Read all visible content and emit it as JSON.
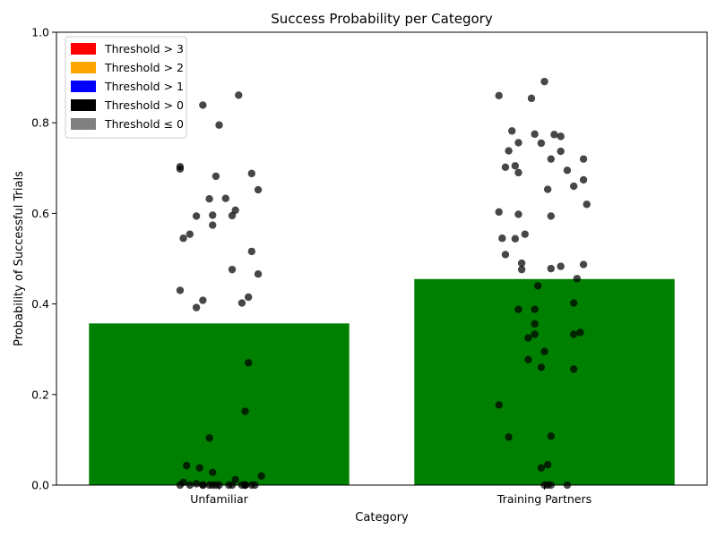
{
  "chart_data": {
    "type": "bar",
    "title": "Success Probability per Category",
    "xlabel": "Category",
    "ylabel": "Probability of Successful Trials",
    "ylim": [
      0,
      1
    ],
    "yticks": [
      "0.0",
      "0.2",
      "0.4",
      "0.6",
      "0.8",
      "1.0"
    ],
    "categories": [
      "Unfamiliar",
      "Training Partners"
    ],
    "values": [
      0.357,
      0.455
    ],
    "bar_color": "#008000",
    "point_color": "#000000",
    "legend_position": "upper-left",
    "legend": [
      {
        "label": "Threshold > 3",
        "color": "#ff0000"
      },
      {
        "label": "Threshold > 2",
        "color": "#ffa500"
      },
      {
        "label": "Threshold > 1",
        "color": "#0000ff"
      },
      {
        "label": "Threshold > 0",
        "color": "#000000"
      },
      {
        "label": "Threshold ≤ 0",
        "color": "#808080"
      }
    ],
    "points": [
      {
        "category": "Unfamiliar",
        "jitter": [
          0.06,
          -0.05,
          0.0,
          -0.12,
          0.1,
          -0.12,
          -0.01,
          0.12,
          -0.03,
          0.02,
          0.05,
          -0.02,
          -0.07,
          0.04,
          -0.02,
          -0.09,
          -0.11,
          0.1,
          0.04,
          0.12,
          -0.12,
          0.09,
          -0.05,
          0.07,
          -0.07,
          0.09,
          0.08,
          -0.03,
          -0.1,
          -0.06,
          -0.02,
          0.13,
          0.05,
          -0.11,
          -0.07,
          -0.01,
          0.1,
          0.07,
          -0.03,
          -0.12,
          0.08,
          -0.05,
          0.0,
          0.08,
          0.04,
          -0.05,
          -0.02,
          -0.09,
          0.08,
          0.03,
          0.11
        ],
        "values": [
          0.861,
          0.839,
          0.795,
          0.703,
          0.688,
          0.698,
          0.682,
          0.652,
          0.632,
          0.633,
          0.607,
          0.596,
          0.594,
          0.595,
          0.574,
          0.554,
          0.545,
          0.516,
          0.476,
          0.466,
          0.43,
          0.415,
          0.408,
          0.402,
          0.392,
          0.27,
          0.163,
          0.104,
          0.043,
          0.038,
          0.028,
          0.02,
          0.012,
          0.006,
          0.003,
          0.0,
          0.0,
          0.0,
          0.0,
          0.0,
          0.0,
          0.0,
          0.0,
          0.0,
          0.0,
          0.0,
          0.0,
          0.0,
          0.0,
          0.0,
          0.0
        ]
      },
      {
        "category": "Training Partners",
        "jitter": [
          0.0,
          -0.14,
          -0.04,
          -0.1,
          -0.03,
          0.03,
          0.05,
          -0.08,
          -0.01,
          -0.11,
          0.05,
          0.02,
          0.12,
          -0.09,
          -0.12,
          0.07,
          -0.08,
          0.12,
          0.09,
          0.01,
          0.13,
          -0.14,
          -0.08,
          0.02,
          -0.06,
          -0.13,
          -0.09,
          -0.12,
          -0.07,
          0.12,
          0.05,
          0.02,
          -0.07,
          0.1,
          -0.02,
          0.09,
          -0.03,
          -0.08,
          -0.03,
          0.11,
          0.09,
          -0.03,
          -0.05,
          0.0,
          -0.05,
          -0.01,
          0.09,
          -0.14,
          0.02,
          -0.11,
          0.01,
          -0.01,
          0.0,
          0.01,
          0.02,
          0.07
        ],
        "values": [
          0.891,
          0.86,
          0.854,
          0.782,
          0.775,
          0.774,
          0.77,
          0.756,
          0.755,
          0.738,
          0.737,
          0.72,
          0.72,
          0.705,
          0.702,
          0.695,
          0.69,
          0.674,
          0.66,
          0.653,
          0.62,
          0.603,
          0.598,
          0.594,
          0.554,
          0.545,
          0.544,
          0.509,
          0.49,
          0.487,
          0.483,
          0.478,
          0.476,
          0.456,
          0.44,
          0.402,
          0.388,
          0.388,
          0.356,
          0.337,
          0.333,
          0.333,
          0.325,
          0.295,
          0.277,
          0.26,
          0.256,
          0.177,
          0.108,
          0.106,
          0.045,
          0.038,
          0.0,
          0.0,
          0.0,
          0.0
        ]
      }
    ]
  }
}
